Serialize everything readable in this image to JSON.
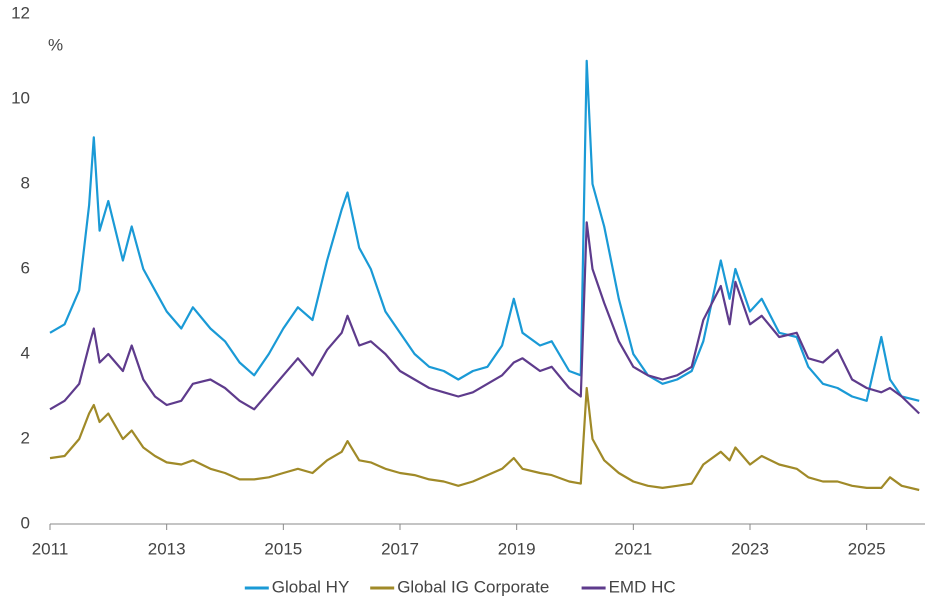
{
  "chart_data": {
    "type": "line",
    "y_label": "%",
    "x": [
      2011,
      2011.25,
      2011.5,
      2011.67,
      2011.75,
      2011.85,
      2012,
      2012.25,
      2012.4,
      2012.6,
      2012.8,
      2013,
      2013.25,
      2013.45,
      2013.75,
      2014,
      2014.25,
      2014.5,
      2014.75,
      2015,
      2015.25,
      2015.5,
      2015.75,
      2016,
      2016.1,
      2016.3,
      2016.5,
      2016.75,
      2017,
      2017.25,
      2017.5,
      2017.75,
      2018,
      2018.25,
      2018.5,
      2018.75,
      2018.95,
      2019.1,
      2019.4,
      2019.6,
      2019.9,
      2020.1,
      2020.2,
      2020.3,
      2020.5,
      2020.75,
      2021,
      2021.25,
      2021.5,
      2021.75,
      2022,
      2022.2,
      2022.5,
      2022.65,
      2022.75,
      2023,
      2023.2,
      2023.5,
      2023.8,
      2024,
      2024.25,
      2024.5,
      2024.75,
      2025,
      2025.25,
      2025.4,
      2025.6,
      2025.9
    ],
    "series": [
      {
        "name": "Global HY",
        "color": "#1a9ad6",
        "values": [
          4.5,
          4.7,
          5.5,
          7.5,
          9.1,
          6.9,
          7.6,
          6.2,
          7.0,
          6.0,
          5.5,
          5.0,
          4.6,
          5.1,
          4.6,
          4.3,
          3.8,
          3.5,
          4.0,
          4.6,
          5.1,
          4.8,
          6.2,
          7.4,
          7.8,
          6.5,
          6.0,
          5.0,
          4.5,
          4.0,
          3.7,
          3.6,
          3.4,
          3.6,
          3.7,
          4.2,
          5.3,
          4.5,
          4.2,
          4.3,
          3.6,
          3.5,
          10.9,
          8.0,
          7.0,
          5.3,
          4.0,
          3.5,
          3.3,
          3.4,
          3.6,
          4.3,
          6.2,
          5.3,
          6.0,
          5.0,
          5.3,
          4.5,
          4.4,
          3.7,
          3.3,
          3.2,
          3.0,
          2.9,
          4.4,
          3.4,
          3.0,
          2.9
        ]
      },
      {
        "name": "Global IG Corporate",
        "color": "#a08a28",
        "values": [
          1.55,
          1.6,
          2.0,
          2.6,
          2.8,
          2.4,
          2.6,
          2.0,
          2.2,
          1.8,
          1.6,
          1.45,
          1.4,
          1.5,
          1.3,
          1.2,
          1.05,
          1.05,
          1.1,
          1.2,
          1.3,
          1.2,
          1.5,
          1.7,
          1.95,
          1.5,
          1.45,
          1.3,
          1.2,
          1.15,
          1.05,
          1.0,
          0.9,
          1.0,
          1.15,
          1.3,
          1.55,
          1.3,
          1.2,
          1.15,
          1.0,
          0.95,
          3.2,
          2.0,
          1.5,
          1.2,
          1.0,
          0.9,
          0.85,
          0.9,
          0.95,
          1.4,
          1.7,
          1.5,
          1.8,
          1.4,
          1.6,
          1.4,
          1.3,
          1.1,
          1.0,
          1.0,
          0.9,
          0.85,
          0.85,
          1.1,
          0.9,
          0.8
        ]
      },
      {
        "name": "EMD HC",
        "color": "#5e3b8c",
        "values": [
          2.7,
          2.9,
          3.3,
          4.2,
          4.6,
          3.8,
          4.0,
          3.6,
          4.2,
          3.4,
          3.0,
          2.8,
          2.9,
          3.3,
          3.4,
          3.2,
          2.9,
          2.7,
          3.1,
          3.5,
          3.9,
          3.5,
          4.1,
          4.5,
          4.9,
          4.2,
          4.3,
          4.0,
          3.6,
          3.4,
          3.2,
          3.1,
          3.0,
          3.1,
          3.3,
          3.5,
          3.8,
          3.9,
          3.6,
          3.7,
          3.2,
          3.0,
          7.1,
          6.0,
          5.2,
          4.3,
          3.7,
          3.5,
          3.4,
          3.5,
          3.7,
          4.8,
          5.6,
          4.7,
          5.7,
          4.7,
          4.9,
          4.4,
          4.5,
          3.9,
          3.8,
          4.1,
          3.4,
          3.2,
          3.1,
          3.2,
          3.0,
          2.6
        ]
      }
    ],
    "xlim": [
      2011,
      2026
    ],
    "xticks": [
      2011,
      2013,
      2015,
      2017,
      2019,
      2021,
      2023,
      2025
    ],
    "ylim": [
      0,
      12
    ],
    "yticks": [
      0,
      2,
      4,
      6,
      8,
      10,
      12
    ],
    "grid": false,
    "legend": "bottom"
  }
}
